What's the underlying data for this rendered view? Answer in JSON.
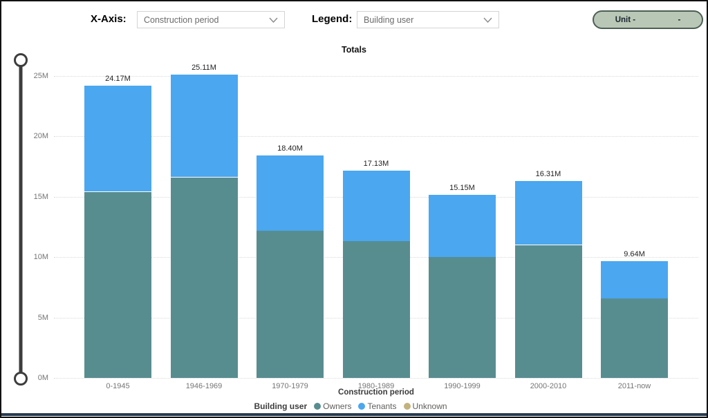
{
  "controls": {
    "x_axis_label": "X-Axis:",
    "x_axis_value": "Construction period",
    "legend_label": "Legend:",
    "legend_value": "Building user",
    "unit_button": {
      "left_text": "Unit -",
      "right_text": "-"
    }
  },
  "chart_data": {
    "type": "bar",
    "stacked": true,
    "title": "Totals",
    "xlabel": "Construction period",
    "ylabel": "",
    "units": "millions",
    "ylim": [
      0,
      25
    ],
    "y_ticks": [
      "0M",
      "5M",
      "10M",
      "15M",
      "20M",
      "25M"
    ],
    "y_tick_values": [
      0,
      5,
      10,
      15,
      20,
      25
    ],
    "grid": "horizontal-dotted",
    "categories": [
      "0-1945",
      "1946-1969",
      "1970-1979",
      "1980-1989",
      "1990-1999",
      "2000-2010",
      "2011-now"
    ],
    "series": [
      {
        "name": "Owners",
        "color": "#588D90",
        "values": [
          15.4,
          16.6,
          12.2,
          11.3,
          10.0,
          11.0,
          6.55
        ]
      },
      {
        "name": "Tenants",
        "color": "#4AA7F0",
        "values": [
          8.77,
          8.51,
          6.2,
          5.83,
          5.15,
          5.31,
          3.09
        ]
      },
      {
        "name": "Unknown",
        "color": "#C2B37C",
        "values": [
          0,
          0,
          0,
          0,
          0,
          0,
          0
        ]
      }
    ],
    "totals_labels": [
      "24.17M",
      "25.11M",
      "18.40M",
      "17.13M",
      "15.15M",
      "16.31M",
      "9.64M"
    ],
    "legend_title": "Building user",
    "legend_position": "bottom"
  }
}
